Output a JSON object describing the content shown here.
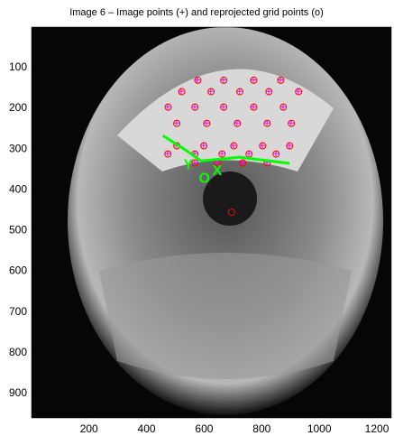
{
  "chart_data": {
    "type": "scatter",
    "title": "Image 6 – Image points (+) and reprojected grid points (o)",
    "xlim": [
      0.5,
      1250
    ],
    "ylim": [
      0.5,
      960
    ],
    "y_reversed": true,
    "xticks": [
      200,
      400,
      600,
      800,
      1000,
      1200
    ],
    "yticks": [
      100,
      200,
      300,
      400,
      500,
      600,
      700,
      800,
      900
    ],
    "series": [
      {
        "color": "#ff00ff",
        "marker": "+",
        "x": [
          576,
          667,
          771,
          865,
          520,
          623,
          723,
          824,
          927,
          473,
          567,
          667,
          771,
          874,
          504,
          608,
          714,
          818,
          902,
          504,
          598,
          702,
          802,
          896,
          473,
          567,
          661,
          755,
          849,
          567,
          645,
          733,
          818
        ],
        "y": [
          130,
          130,
          130,
          130,
          158,
          158,
          158,
          158,
          158,
          196,
          196,
          196,
          196,
          196,
          236,
          236,
          236,
          236,
          236,
          291,
          291,
          291,
          291,
          291,
          311,
          311,
          311,
          311,
          311,
          333,
          333,
          333,
          333
        ]
      },
      {
        "color": "#ff0000",
        "marker": "o",
        "x": [
          578,
          668,
          772,
          866,
          522,
          624,
          724,
          825,
          928,
          475,
          568,
          668,
          772,
          875,
          505,
          609,
          715,
          819,
          903,
          505,
          599,
          703,
          803,
          897,
          474,
          568,
          662,
          756,
          850,
          568,
          646,
          734,
          819
        ],
        "y": [
          131,
          131,
          131,
          131,
          159,
          159,
          159,
          159,
          159,
          197,
          197,
          197,
          197,
          197,
          237,
          237,
          237,
          237,
          237,
          292,
          292,
          292,
          292,
          292,
          312,
          312,
          312,
          312,
          312,
          334,
          334,
          334,
          334
        ]
      },
      {
        "color": "#ff0000",
        "marker": "o",
        "x": [
          695
        ],
        "y": [
          455
        ]
      }
    ],
    "axes_overlay": {
      "color": "#00ff00",
      "lines": [
        {
          "x": [
            589,
            723,
            896
          ],
          "y": [
            329,
            320,
            335
          ]
        },
        {
          "x": [
            589,
            535,
            457
          ],
          "y": [
            329,
            302,
            267
          ]
        }
      ],
      "labels": [
        {
          "text": "Y",
          "x": 545,
          "y": 340
        },
        {
          "text": "O",
          "x": 601,
          "y": 373
        },
        {
          "text": "X",
          "x": 645,
          "y": 355
        }
      ]
    }
  }
}
